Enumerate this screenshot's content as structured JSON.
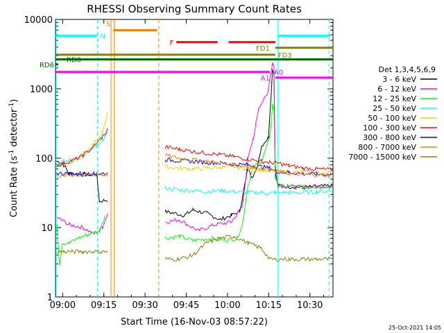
{
  "chart_data": {
    "type": "line",
    "title": "RHESSI Observing Summary Count Rates",
    "xlabel": "Start Time (16-Nov-03 08:57:22)",
    "ylabel_main": "Count Rate (s",
    "ylabel_sup": "-1",
    "ylabel_mid": " detector",
    "ylabel_end": ")",
    "footer": "25-Oct-2021 14:05",
    "x_scale": "time (minutes since 08:57:22)",
    "xlim": [
      0,
      101
    ],
    "y_scale": "log",
    "ylim": [
      1,
      10000
    ],
    "x_ticks": [
      {
        "t": 2.6,
        "label": "09:00"
      },
      {
        "t": 17.6,
        "label": "09:15"
      },
      {
        "t": 32.6,
        "label": "09:30"
      },
      {
        "t": 47.6,
        "label": "09:45"
      },
      {
        "t": 62.6,
        "label": "10:00"
      },
      {
        "t": 77.6,
        "label": "10:15"
      },
      {
        "t": 92.6,
        "label": "10:30"
      }
    ],
    "y_ticks": [
      {
        "v": 1,
        "label": "1"
      },
      {
        "v": 10,
        "label": "10"
      },
      {
        "v": 100,
        "label": "100"
      },
      {
        "v": 1000,
        "label": "1000"
      },
      {
        "v": 10000,
        "label": "10000"
      }
    ],
    "legend_title": "Det 1,3,4,5,6,9",
    "series": [
      {
        "name": "3 - 6 keV",
        "color": "#000000",
        "points": [
          [
            0.5,
            90
          ],
          [
            2.5,
            85
          ],
          [
            5,
            60
          ],
          [
            10,
            58
          ],
          [
            15,
            58
          ],
          [
            16,
            24
          ],
          [
            19,
            25
          ],
          [
            40,
            17
          ],
          [
            47,
            15
          ],
          [
            50,
            18
          ],
          [
            55,
            16
          ],
          [
            60,
            13
          ],
          [
            64,
            15
          ],
          [
            67,
            17
          ],
          [
            70,
            70
          ],
          [
            71.5,
            55
          ],
          [
            73,
            65
          ],
          [
            75,
            150
          ],
          [
            77.5,
            200
          ],
          [
            79,
            1900
          ],
          [
            79.5,
            1700
          ],
          [
            80,
            60
          ],
          [
            81,
            40
          ],
          [
            90,
            38
          ],
          [
            101,
            40
          ]
        ]
      },
      {
        "name": "6 - 12 keV",
        "color": "#ff00ff",
        "points": [
          [
            0.5,
            14
          ],
          [
            2,
            13
          ],
          [
            5,
            11
          ],
          [
            10,
            10
          ],
          [
            14,
            8
          ],
          [
            17,
            10
          ],
          [
            19,
            16
          ],
          [
            40,
            12
          ],
          [
            45,
            13
          ],
          [
            52,
            9
          ],
          [
            58,
            11
          ],
          [
            64,
            12
          ],
          [
            68,
            20
          ],
          [
            70,
            95
          ],
          [
            72,
            190
          ],
          [
            74,
            550
          ],
          [
            77,
            800
          ],
          [
            79,
            2400
          ],
          [
            79.5,
            2200
          ],
          [
            80,
            80
          ],
          [
            81,
            40
          ],
          [
            90,
            38
          ],
          [
            101,
            40
          ]
        ]
      },
      {
        "name": "12 - 25 keV",
        "color": "#00ff00",
        "points": [
          [
            0.5,
            12
          ],
          [
            1.5,
            3
          ],
          [
            2.5,
            6
          ],
          [
            5,
            6
          ],
          [
            8,
            7
          ],
          [
            12,
            8
          ],
          [
            16,
            9
          ],
          [
            18,
            15
          ],
          [
            40,
            7
          ],
          [
            45,
            7.5
          ],
          [
            50,
            6.5
          ],
          [
            57,
            7
          ],
          [
            62,
            6.5
          ],
          [
            66,
            7
          ],
          [
            68,
            11
          ],
          [
            70,
            40
          ],
          [
            72,
            75
          ],
          [
            75,
            90
          ],
          [
            78,
            200
          ],
          [
            79,
            600
          ],
          [
            79.5,
            500
          ],
          [
            80,
            50
          ],
          [
            81,
            40
          ],
          [
            90,
            38
          ],
          [
            101,
            40
          ]
        ]
      },
      {
        "name": "25 - 50 keV",
        "color": "#00ffff",
        "points": [
          [
            0.5,
            80
          ],
          [
            3,
            90
          ],
          [
            6,
            95
          ],
          [
            10,
            105
          ],
          [
            14,
            140
          ],
          [
            17,
            180
          ],
          [
            19,
            240
          ],
          [
            40,
            37
          ],
          [
            45,
            35
          ],
          [
            50,
            34
          ],
          [
            55,
            33
          ],
          [
            60,
            34
          ],
          [
            65,
            33
          ],
          [
            70,
            32
          ],
          [
            75,
            32
          ],
          [
            78,
            31
          ],
          [
            80,
            32
          ],
          [
            85,
            32
          ],
          [
            90,
            32
          ],
          [
            95,
            33
          ],
          [
            101,
            34
          ]
        ]
      },
      {
        "name": "50 - 100 keV",
        "color": "#ffcc00",
        "points": [
          [
            0.5,
            75
          ],
          [
            3,
            85
          ],
          [
            6,
            90
          ],
          [
            10,
            110
          ],
          [
            14,
            160
          ],
          [
            17,
            240
          ],
          [
            19,
            460
          ],
          [
            40,
            75
          ],
          [
            45,
            72
          ],
          [
            50,
            70
          ],
          [
            55,
            72
          ],
          [
            60,
            74
          ],
          [
            65,
            75
          ],
          [
            70,
            70
          ],
          [
            75,
            68
          ],
          [
            78,
            66
          ],
          [
            80,
            65
          ],
          [
            85,
            64
          ],
          [
            90,
            63
          ],
          [
            95,
            62
          ],
          [
            101,
            62
          ]
        ]
      },
      {
        "name": "100 - 300 keV",
        "color": "#ff0000",
        "points": [
          [
            0.5,
            78
          ],
          [
            3,
            85
          ],
          [
            6,
            92
          ],
          [
            10,
            108
          ],
          [
            14,
            150
          ],
          [
            17,
            200
          ],
          [
            19,
            260
          ],
          [
            40,
            145
          ],
          [
            45,
            135
          ],
          [
            50,
            125
          ],
          [
            55,
            118
          ],
          [
            60,
            112
          ],
          [
            65,
            105
          ],
          [
            70,
            97
          ],
          [
            75,
            90
          ],
          [
            78,
            87
          ],
          [
            80,
            86
          ],
          [
            85,
            78
          ],
          [
            90,
            72
          ],
          [
            95,
            70
          ],
          [
            101,
            68
          ]
        ]
      },
      {
        "name": "300 - 800 keV",
        "color": "#0000ff",
        "points": [
          [
            0.5,
            60
          ],
          [
            3,
            60
          ],
          [
            6,
            60
          ],
          [
            10,
            60
          ],
          [
            14,
            60
          ],
          [
            17,
            60
          ],
          [
            19,
            60
          ],
          [
            40,
            95
          ],
          [
            45,
            92
          ],
          [
            50,
            90
          ],
          [
            55,
            87
          ],
          [
            60,
            85
          ],
          [
            65,
            82
          ],
          [
            70,
            80
          ],
          [
            75,
            75
          ],
          [
            78,
            72
          ],
          [
            80,
            65
          ],
          [
            85,
            62
          ],
          [
            90,
            60
          ],
          [
            95,
            59
          ],
          [
            101,
            58
          ]
        ]
      },
      {
        "name": "800 - 7000 keV",
        "color": "#ff8000",
        "points": [
          [
            0.5,
            55
          ],
          [
            3,
            56
          ],
          [
            6,
            57
          ],
          [
            10,
            57
          ],
          [
            14,
            58
          ],
          [
            17,
            58
          ],
          [
            19,
            58
          ],
          [
            40,
            110
          ],
          [
            45,
            100
          ],
          [
            50,
            95
          ],
          [
            55,
            90
          ],
          [
            60,
            85
          ],
          [
            65,
            80
          ],
          [
            70,
            76
          ],
          [
            75,
            72
          ],
          [
            78,
            68
          ],
          [
            80,
            65
          ],
          [
            85,
            60
          ],
          [
            90,
            58
          ],
          [
            95,
            57
          ],
          [
            101,
            56
          ]
        ]
      },
      {
        "name": "7000 - 15000 keV",
        "color": "#808000",
        "points": [
          [
            0.5,
            4.5
          ],
          [
            3,
            4.5
          ],
          [
            6,
            4.5
          ],
          [
            10,
            4.5
          ],
          [
            14,
            4.5
          ],
          [
            17,
            4.5
          ],
          [
            19,
            4.5
          ],
          [
            40,
            3.5
          ],
          [
            45,
            3.5
          ],
          [
            50,
            4
          ],
          [
            55,
            6
          ],
          [
            60,
            7
          ],
          [
            65,
            7.5
          ],
          [
            70,
            6
          ],
          [
            75,
            5
          ],
          [
            78,
            3.5
          ],
          [
            80,
            3.5
          ],
          [
            85,
            3.5
          ],
          [
            90,
            3.5
          ],
          [
            95,
            3.5
          ],
          [
            101,
            3.5
          ]
        ]
      }
    ],
    "flags": [
      {
        "label": "N",
        "color": "#00ffff",
        "v": 5800,
        "segments": [
          [
            0,
            15
          ],
          [
            81,
            100
          ]
        ]
      },
      {
        "label": "S",
        "color": "#ff8000",
        "v": 7000,
        "segments": [
          [
            21,
            37
          ]
        ]
      },
      {
        "label": "F",
        "color": "#ff0000",
        "v": 4700,
        "segments": [
          [
            44,
            59
          ],
          [
            63,
            80
          ]
        ]
      },
      {
        "label": "FD1",
        "color": "#808000",
        "v": 3900,
        "segments": [
          [
            80,
            101
          ]
        ]
      },
      {
        "label": "FD3",
        "color": "#808000",
        "v": 3100,
        "segments": [
          [
            0,
            80
          ]
        ]
      },
      {
        "label": "RD0",
        "color": "#006600",
        "v": 2650,
        "segments": [
          [
            0,
            101
          ]
        ]
      },
      {
        "label": "RD6",
        "color": "#006600",
        "v": 2250,
        "segments": [
          [
            0,
            1
          ]
        ]
      },
      {
        "label": "A0",
        "color": "#ff00ff",
        "v": 1750,
        "segments": [
          [
            0,
            78
          ]
        ]
      },
      {
        "label": "A1",
        "color": "#ff00ff",
        "v": 1450,
        "segments": [
          [
            80,
            101
          ]
        ]
      }
    ],
    "vlines": [
      {
        "t": 0.2,
        "color": "#00ffff",
        "style": "solid"
      },
      {
        "t": 15.3,
        "color": "#00ffff",
        "style": "dashed"
      },
      {
        "t": 20.2,
        "color": "#ff8000",
        "style": "solid"
      },
      {
        "t": 21.4,
        "color": "#ff8000",
        "style": "solid"
      },
      {
        "t": 37.6,
        "color": "#ff8000",
        "style": "dashed"
      },
      {
        "t": 81.0,
        "color": "#00ffff",
        "style": "solid"
      },
      {
        "t": 99.5,
        "color": "#00ffff",
        "style": "dashed"
      }
    ]
  }
}
